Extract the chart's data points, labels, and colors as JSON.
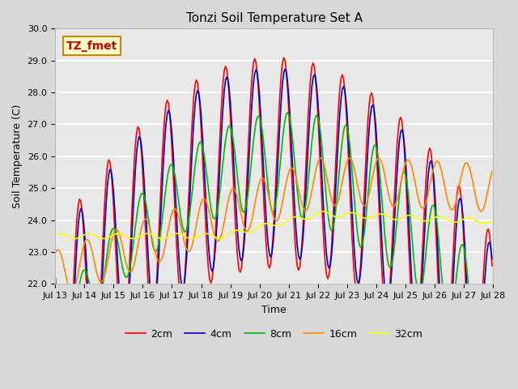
{
  "title": "Tonzi Soil Temperature Set A",
  "xlabel": "Time",
  "ylabel": "Soil Temperature (C)",
  "ylim": [
    22.0,
    30.0
  ],
  "yticks": [
    22.0,
    23.0,
    24.0,
    25.0,
    26.0,
    27.0,
    28.0,
    29.0,
    30.0
  ],
  "xtick_labels": [
    "Jul 13",
    "Jul 14",
    "Jul 15",
    "Jul 16",
    "Jul 17",
    "Jul 18",
    "Jul 19",
    "Jul 20",
    "Jul 21",
    "Jul 22",
    "Jul 23",
    "Jul 24",
    "Jul 25",
    "Jul 26",
    "Jul 27",
    "Jul 28"
  ],
  "colors": {
    "2cm": "#ff0000",
    "4cm": "#0000cc",
    "8cm": "#00bb00",
    "16cm": "#ff8800",
    "32cm": "#ffff00"
  },
  "legend_labels": [
    "2cm",
    "4cm",
    "8cm",
    "16cm",
    "32cm"
  ],
  "annotation_text": "TZ_fmet",
  "annotation_color": "#cc0000",
  "annotation_bg": "#ffffcc",
  "annotation_edge": "#cc8800",
  "fig_bg": "#d8d8d8",
  "plot_bg": "#e8e8e8",
  "title_fontsize": 11,
  "label_fontsize": 9,
  "tick_fontsize": 8
}
